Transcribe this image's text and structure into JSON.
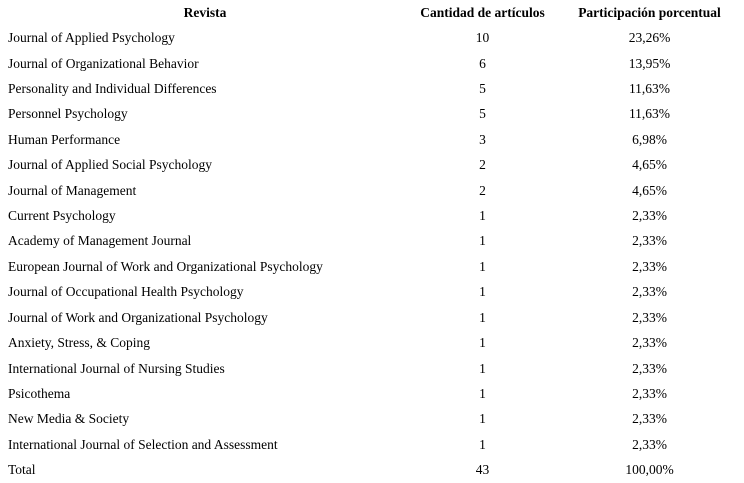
{
  "colors": {
    "background": "#ffffff",
    "text": "#000000"
  },
  "table": {
    "columns": {
      "revista": "Revista",
      "cantidad": "Cantidad de artículos",
      "participacion": "Participación porcentual"
    },
    "rows": [
      {
        "revista": "Journal of Applied Psychology",
        "cantidad": "10",
        "participacion": "23,26%"
      },
      {
        "revista": "Journal of Organizational Behavior",
        "cantidad": "6",
        "participacion": "13,95%"
      },
      {
        "revista": "Personality and Individual Differences",
        "cantidad": "5",
        "participacion": "11,63%"
      },
      {
        "revista": "Personnel Psychology",
        "cantidad": "5",
        "participacion": "11,63%"
      },
      {
        "revista": "Human Performance",
        "cantidad": "3",
        "participacion": "6,98%"
      },
      {
        "revista": "Journal of Applied Social Psychology",
        "cantidad": "2",
        "participacion": "4,65%"
      },
      {
        "revista": "Journal of Management",
        "cantidad": "2",
        "participacion": "4,65%"
      },
      {
        "revista": "Current Psychology",
        "cantidad": "1",
        "participacion": "2,33%"
      },
      {
        "revista": "Academy of Management Journal",
        "cantidad": "1",
        "participacion": "2,33%"
      },
      {
        "revista": "European Journal of Work and Organizational Psychology",
        "cantidad": "1",
        "participacion": "2,33%"
      },
      {
        "revista": "Journal of Occupational Health Psychology",
        "cantidad": "1",
        "participacion": "2,33%"
      },
      {
        "revista": "Journal of Work and Organizational Psychology",
        "cantidad": "1",
        "participacion": "2,33%"
      },
      {
        "revista": "Anxiety, Stress, & Coping",
        "cantidad": "1",
        "participacion": "2,33%"
      },
      {
        "revista": "International Journal of Nursing Studies",
        "cantidad": "1",
        "participacion": "2,33%"
      },
      {
        "revista": "Psicothema",
        "cantidad": "1",
        "participacion": "2,33%"
      },
      {
        "revista": "New Media & Society",
        "cantidad": "1",
        "participacion": "2,33%"
      },
      {
        "revista": "International Journal of Selection and Assessment",
        "cantidad": "1",
        "participacion": "2,33%"
      }
    ],
    "total": {
      "revista": "Total",
      "cantidad": "43",
      "participacion": "100,00%"
    }
  },
  "chart_data": {
    "type": "table",
    "title": "",
    "columns": [
      "Revista",
      "Cantidad de artículos",
      "Participación porcentual"
    ],
    "rows": [
      [
        "Journal of Applied Psychology",
        10,
        "23,26%"
      ],
      [
        "Journal of Organizational Behavior",
        6,
        "13,95%"
      ],
      [
        "Personality and Individual Differences",
        5,
        "11,63%"
      ],
      [
        "Personnel Psychology",
        5,
        "11,63%"
      ],
      [
        "Human Performance",
        3,
        "6,98%"
      ],
      [
        "Journal of Applied Social Psychology",
        2,
        "4,65%"
      ],
      [
        "Journal of Management",
        2,
        "4,65%"
      ],
      [
        "Current Psychology",
        1,
        "2,33%"
      ],
      [
        "Academy of Management Journal",
        1,
        "2,33%"
      ],
      [
        "European Journal of Work and Organizational Psychology",
        1,
        "2,33%"
      ],
      [
        "Journal of Occupational Health Psychology",
        1,
        "2,33%"
      ],
      [
        "Journal of Work and Organizational Psychology",
        1,
        "2,33%"
      ],
      [
        "Anxiety, Stress, & Coping",
        1,
        "2,33%"
      ],
      [
        "International Journal of Nursing Studies",
        1,
        "2,33%"
      ],
      [
        "Psicothema",
        1,
        "2,33%"
      ],
      [
        "New Media & Society",
        1,
        "2,33%"
      ],
      [
        "International Journal of Selection and Assessment",
        1,
        "2,33%"
      ],
      [
        "Total",
        43,
        "100,00%"
      ]
    ]
  }
}
